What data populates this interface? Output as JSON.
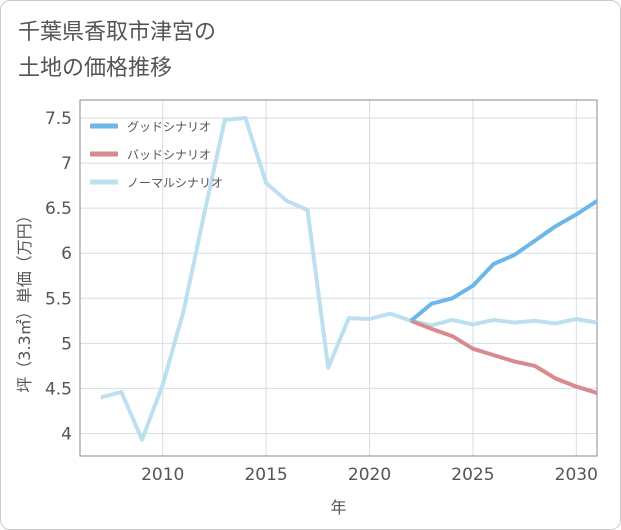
{
  "page_title_lines": [
    "千葉県香取市津宮の",
    "土地の価格推移"
  ],
  "chart_data": {
    "type": "line",
    "title": "千葉県香取市津宮の土地の価格推移",
    "xlabel": "年",
    "ylabel": "坪（3.3㎡）単価（万円）",
    "xlim": [
      2006,
      2031
    ],
    "ylim": [
      3.75,
      7.7
    ],
    "xticks": [
      2010,
      2015,
      2020,
      2025,
      2030
    ],
    "yticks": [
      4,
      4.5,
      5,
      5.5,
      6,
      6.5,
      7,
      7.5
    ],
    "ytick_labels": [
      "4",
      "4.5",
      "5",
      "5.5",
      "6",
      "6.5",
      "7",
      "7.5"
    ],
    "grid": true,
    "legend_position": "top-left",
    "series": [
      {
        "name": "グッドシナリオ",
        "color": "#6cb6e8",
        "x": [
          2022,
          2023,
          2024,
          2025,
          2026,
          2027,
          2028,
          2029,
          2030,
          2031
        ],
        "values": [
          5.25,
          5.44,
          5.5,
          5.64,
          5.88,
          5.98,
          6.14,
          6.3,
          6.43,
          6.58
        ]
      },
      {
        "name": "バッドシナリオ",
        "color": "#d88a8e",
        "x": [
          2022,
          2023,
          2024,
          2025,
          2026,
          2027,
          2028,
          2029,
          2030,
          2031
        ],
        "values": [
          5.25,
          5.16,
          5.08,
          4.94,
          4.87,
          4.8,
          4.75,
          4.61,
          4.52,
          4.45
        ]
      },
      {
        "name": "ノーマルシナリオ",
        "color": "#bde0ee",
        "x": [
          2007,
          2008,
          2009,
          2010,
          2011,
          2012,
          2013,
          2014,
          2015,
          2016,
          2017,
          2018,
          2019,
          2020,
          2021,
          2022,
          2023,
          2024,
          2025,
          2026,
          2027,
          2028,
          2029,
          2030,
          2031
        ],
        "values": [
          4.4,
          4.46,
          3.93,
          4.54,
          5.35,
          6.43,
          7.48,
          7.5,
          6.78,
          6.58,
          6.48,
          4.73,
          5.28,
          5.27,
          5.33,
          5.25,
          5.2,
          5.26,
          5.21,
          5.26,
          5.23,
          5.25,
          5.22,
          5.27,
          5.23
        ]
      }
    ]
  }
}
